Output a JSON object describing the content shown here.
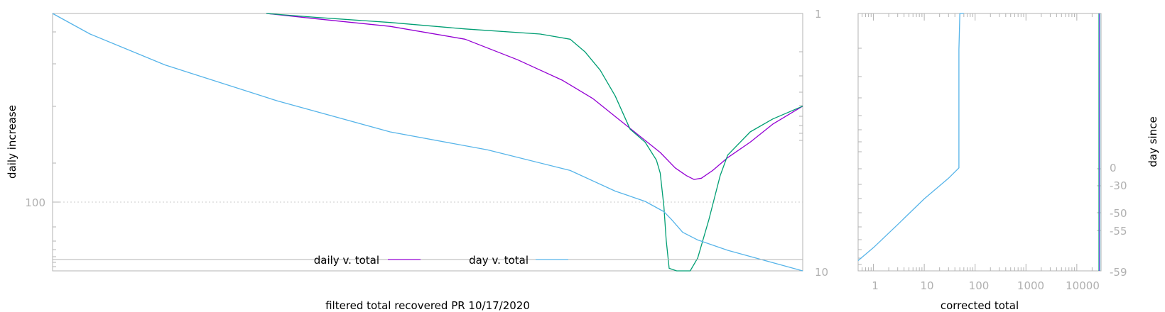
{
  "colors": {
    "border": "#b3b3b3",
    "tick_text": "#b0b0b0",
    "grid": "#cccccc",
    "daily": "#9400d3",
    "green": "#009e73",
    "day": "#56b4e9"
  },
  "chart_data": [
    {
      "type": "line",
      "title": "",
      "xlabel": "filtered total recovered PR 10/17/2020",
      "ylabel": "daily increase",
      "y_scale": "log",
      "y_ticks": [
        {
          "value": 100,
          "label": "100"
        }
      ],
      "y2_scale": "log",
      "y2_ticks": [
        {
          "value": 1,
          "label": "1"
        },
        {
          "value": 10,
          "label": "10"
        }
      ],
      "grid": "dotted line at y=100",
      "legend": {
        "placement": "bottom-center",
        "entries": [
          {
            "label": "daily v. total",
            "color": "#9400d3"
          },
          {
            "label": "day v. total",
            "color": "#56b4e9"
          }
        ]
      },
      "series": [
        {
          "name": "daily v. total",
          "color": "#9400d3",
          "points": [
            [
              0.285,
              0.0
            ],
            [
              0.35,
              0.02
            ],
            [
              0.45,
              0.05
            ],
            [
              0.55,
              0.1
            ],
            [
              0.62,
              0.18
            ],
            [
              0.68,
              0.26
            ],
            [
              0.72,
              0.33
            ],
            [
              0.75,
              0.4
            ],
            [
              0.78,
              0.47
            ],
            [
              0.81,
              0.54
            ],
            [
              0.83,
              0.6
            ],
            [
              0.845,
              0.63
            ],
            [
              0.855,
              0.645
            ],
            [
              0.865,
              0.64
            ],
            [
              0.88,
              0.61
            ],
            [
              0.9,
              0.56
            ],
            [
              0.93,
              0.5
            ],
            [
              0.96,
              0.43
            ],
            [
              1.0,
              0.36
            ]
          ]
        },
        {
          "color": "#009e73",
          "points": [
            [
              0.285,
              0.0
            ],
            [
              0.35,
              0.015
            ],
            [
              0.45,
              0.035
            ],
            [
              0.55,
              0.06
            ],
            [
              0.65,
              0.08
            ],
            [
              0.69,
              0.1
            ],
            [
              0.71,
              0.15
            ],
            [
              0.73,
              0.22
            ],
            [
              0.75,
              0.32
            ],
            [
              0.77,
              0.45
            ],
            [
              0.79,
              0.5
            ],
            [
              0.805,
              0.57
            ],
            [
              0.81,
              0.62
            ],
            [
              0.815,
              0.75
            ],
            [
              0.818,
              0.88
            ],
            [
              0.822,
              0.99
            ],
            [
              0.832,
              1.0
            ],
            [
              0.85,
              1.0
            ],
            [
              0.86,
              0.95
            ],
            [
              0.875,
              0.8
            ],
            [
              0.89,
              0.63
            ],
            [
              0.9,
              0.55
            ],
            [
              0.93,
              0.46
            ],
            [
              0.96,
              0.41
            ],
            [
              1.0,
              0.36
            ]
          ]
        },
        {
          "name": "day v. total",
          "color": "#56b4e9",
          "points": [
            [
              0.0,
              0.0
            ],
            [
              0.05,
              0.08
            ],
            [
              0.15,
              0.2
            ],
            [
              0.3,
              0.34
            ],
            [
              0.45,
              0.46
            ],
            [
              0.58,
              0.53
            ],
            [
              0.69,
              0.61
            ],
            [
              0.75,
              0.69
            ],
            [
              0.79,
              0.73
            ],
            [
              0.815,
              0.77
            ],
            [
              0.825,
              0.8
            ],
            [
              0.84,
              0.85
            ],
            [
              0.86,
              0.88
            ],
            [
              0.9,
              0.92
            ],
            [
              0.95,
              0.96
            ],
            [
              1.0,
              1.0
            ]
          ]
        }
      ]
    },
    {
      "type": "line",
      "xlabel": "corrected total",
      "ylabel": "day since",
      "x_scale": "log",
      "x_ticks": [
        {
          "value": 1,
          "label": "1"
        },
        {
          "value": 10,
          "label": "10"
        },
        {
          "value": 100,
          "label": "100"
        },
        {
          "value": 1000,
          "label": "1000"
        },
        {
          "value": 10000,
          "label": "10000"
        }
      ],
      "xlim": [
        0.5,
        30000
      ],
      "y2_ticks": [
        {
          "value": 0,
          "label": "0"
        },
        {
          "value": -30,
          "label": "-30"
        },
        {
          "value": -50,
          "label": "-50"
        },
        {
          "value": -55,
          "label": "-55"
        },
        {
          "value": -59,
          "label": "-59"
        }
      ],
      "series": [
        {
          "color": "#56b4e9",
          "points": [
            [
              0.5,
              0.96
            ],
            [
              1,
              0.91
            ],
            [
              3,
              0.82
            ],
            [
              10,
              0.72
            ],
            [
              30,
              0.64
            ],
            [
              48,
              0.6
            ],
            [
              48,
              0.14
            ],
            [
              50,
              0.0
            ],
            [
              60,
              0.0
            ]
          ]
        }
      ]
    }
  ]
}
